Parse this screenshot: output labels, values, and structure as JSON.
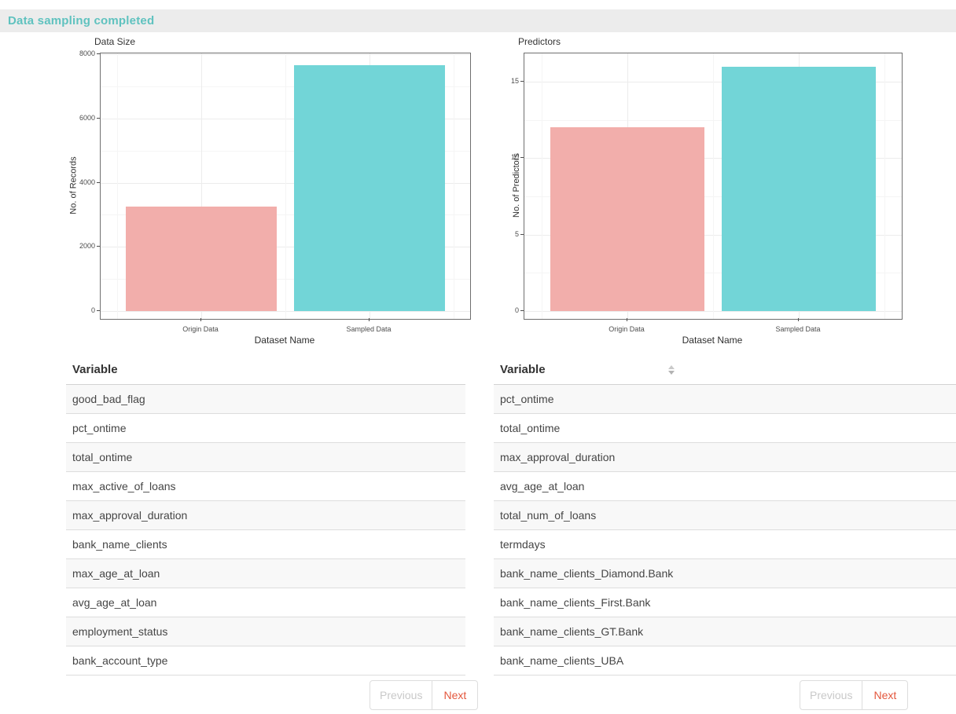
{
  "banner": {
    "text": "Data sampling completed"
  },
  "colors": {
    "banner_bg": "#ececec",
    "banner_text": "#5fc2bf",
    "bar_origin": "#f2aeab",
    "bar_sampled": "#72d5d7",
    "next_link": "#e4573d",
    "previous_link_disabled": "#c9c9c9"
  },
  "chart_data": [
    {
      "type": "bar",
      "title": "Data Size",
      "xlabel": "Dataset Name",
      "ylabel": "No. of Records",
      "categories": [
        "Origin Data",
        "Sampled Data"
      ],
      "values": [
        3250,
        7660
      ],
      "ylim": [
        0,
        8025
      ],
      "yticks": [
        0,
        2000,
        4000,
        6000,
        8000
      ],
      "bar_colors": [
        "#f2aeab",
        "#72d5d7"
      ],
      "grid": true,
      "legend": "none"
    },
    {
      "type": "bar",
      "title": "Predictors",
      "xlabel": "Dataset Name",
      "ylabel": "No. of Predictors",
      "categories": [
        "Origin Data",
        "Sampled Data"
      ],
      "values": [
        12,
        16
      ],
      "ylim": [
        0,
        16.85
      ],
      "yticks": [
        0,
        5,
        10,
        15
      ],
      "bar_colors": [
        "#f2aeab",
        "#72d5d7"
      ],
      "grid": true,
      "legend": "none"
    }
  ],
  "tables": {
    "left": {
      "header": "Variable",
      "rows": [
        "good_bad_flag",
        "pct_ontime",
        "total_ontime",
        "max_active_of_loans",
        "max_approval_duration",
        "bank_name_clients",
        "max_age_at_loan",
        "avg_age_at_loan",
        "employment_status",
        "bank_account_type"
      ],
      "pagination": {
        "previous": "Previous",
        "next": "Next",
        "previous_disabled": true
      }
    },
    "right": {
      "header": "Variable",
      "sort_icon": "sort-both",
      "rows": [
        "pct_ontime",
        "total_ontime",
        "max_approval_duration",
        "avg_age_at_loan",
        "total_num_of_loans",
        "termdays",
        "bank_name_clients_Diamond.Bank",
        "bank_name_clients_First.Bank",
        "bank_name_clients_GT.Bank",
        "bank_name_clients_UBA"
      ],
      "pagination": {
        "previous": "Previous",
        "next": "Next",
        "previous_disabled": true
      }
    }
  }
}
